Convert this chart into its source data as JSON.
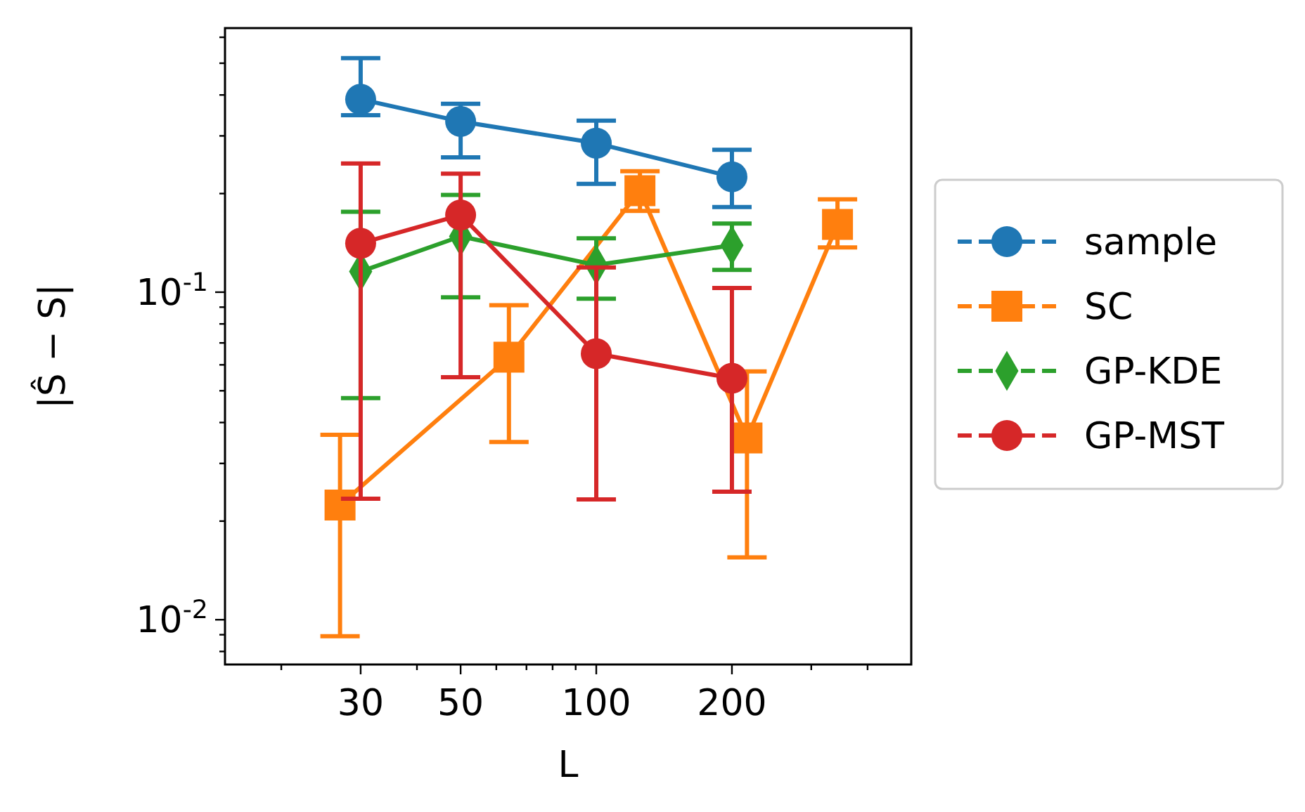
{
  "chart_data": {
    "type": "line",
    "xlabel": "L",
    "ylabel": "|Ŝ − S|",
    "log": "xy",
    "xlim": [
      15,
      500
    ],
    "ylim": [
      0.0073,
      0.64
    ],
    "xticks": [
      {
        "value": 20,
        "label": null
      },
      30,
      {
        "value": 40,
        "label": null
      },
      50,
      {
        "value": 60,
        "label": null
      },
      {
        "value": 70,
        "label": null
      },
      {
        "value": 80,
        "label": null
      },
      {
        "value": 90,
        "label": null
      },
      100,
      200,
      {
        "value": 300,
        "label": null
      },
      {
        "value": 400,
        "label": null
      }
    ],
    "yticks": [
      {
        "value": 0.008,
        "label": null
      },
      {
        "value": 0.009,
        "label": null
      },
      {
        "value": 0.01,
        "label": "10$^{-2}$"
      },
      {
        "value": 0.02,
        "label": null
      },
      {
        "value": 0.03,
        "label": null
      },
      {
        "value": 0.04,
        "label": null
      },
      {
        "value": 0.05,
        "label": null
      },
      {
        "value": 0.06,
        "label": null
      },
      {
        "value": 0.07,
        "label": null
      },
      {
        "value": 0.08,
        "label": null
      },
      {
        "value": 0.09,
        "label": null
      },
      {
        "value": 0.1,
        "label": "10$^{-1}$"
      },
      {
        "value": 0.2,
        "label": null
      },
      {
        "value": 0.3,
        "label": null
      },
      {
        "value": 0.4,
        "label": null
      },
      {
        "value": 0.5,
        "label": null
      },
      {
        "value": 0.6,
        "label": null
      }
    ],
    "grid": false,
    "legend": "right",
    "line_style": "solid",
    "series": [
      {
        "name": "sample",
        "color": "#1f77b4",
        "marker": "circle",
        "x": [
          30,
          50,
          100,
          200
        ],
        "values": [
          0.388,
          0.332,
          0.285,
          0.225
        ],
        "errors": [
          [
            0.347,
            0.518
          ],
          [
            0.258,
            0.376
          ],
          [
            0.214,
            0.334
          ],
          [
            0.182,
            0.272
          ]
        ]
      },
      {
        "name": "SC",
        "color": "#ff7f0e",
        "marker": "square",
        "x": [
          27,
          64,
          125,
          216,
          343
        ],
        "values": [
          0.0224,
          0.0633,
          0.204,
          0.0359,
          0.161
        ],
        "errors": [
          [
            0.0089,
            0.0367
          ],
          [
            0.0349,
            0.0912
          ],
          [
            0.177,
            0.234
          ],
          [
            0.0155,
            0.0573
          ],
          [
            0.137,
            0.192
          ]
        ]
      },
      {
        "name": "GP-KDE",
        "color": "#2ca02c",
        "marker": "diamond",
        "x": [
          30,
          50,
          100,
          200
        ],
        "values": [
          0.1156,
          0.148,
          0.121,
          0.139
        ],
        "errors": [
          [
            0.0475,
            0.176
          ],
          [
            0.0964,
            0.198
          ],
          [
            0.0955,
            0.146
          ],
          [
            0.117,
            0.162
          ]
        ]
      },
      {
        "name": "GP-MST",
        "color": "#d62728",
        "marker": "circle",
        "x": [
          30,
          50,
          100,
          200
        ],
        "values": [
          0.141,
          0.172,
          0.0649,
          0.0546
        ],
        "errors": [
          [
            0.0234,
            0.247
          ],
          [
            0.055,
            0.23
          ],
          [
            0.0233,
            0.119
          ],
          [
            0.0246,
            0.103
          ]
        ]
      }
    ]
  }
}
